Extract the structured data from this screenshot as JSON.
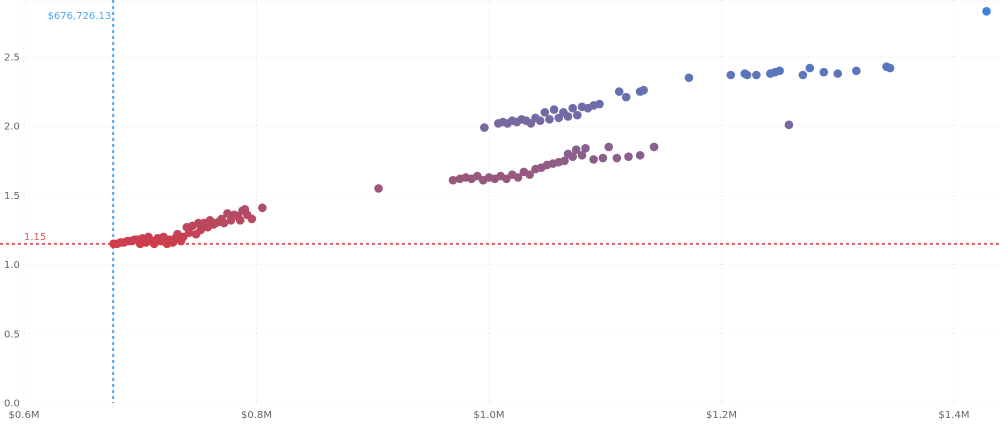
{
  "chart_data": {
    "type": "scatter",
    "title": "",
    "xlabel": "",
    "ylabel": "",
    "xlim": [
      600000,
      1440000
    ],
    "ylim": [
      0,
      2.85
    ],
    "grid": true,
    "x_ticks": [
      {
        "value": 600000,
        "label": "$0.6M"
      },
      {
        "value": 800000,
        "label": "$0.8M"
      },
      {
        "value": 1000000,
        "label": "$1.0M"
      },
      {
        "value": 1200000,
        "label": "$1.2M"
      },
      {
        "value": 1400000,
        "label": "$1.4M"
      }
    ],
    "y_ticks": [
      {
        "value": 0,
        "label": "0.0"
      },
      {
        "value": 0.5,
        "label": "0.5"
      },
      {
        "value": 1.0,
        "label": "1.0"
      },
      {
        "value": 1.5,
        "label": "1.5"
      },
      {
        "value": 2.0,
        "label": "2.0"
      },
      {
        "value": 2.5,
        "label": "2.5"
      }
    ],
    "reference_lines": {
      "x": {
        "value": 676726.13,
        "label": "$676,726.13",
        "color": "#4da6f0"
      },
      "y": {
        "value": 1.15,
        "label": "1.15",
        "color": "#e05c5c"
      }
    },
    "color_scale": {
      "low": "#d13d4a",
      "high": "#3a86d9"
    },
    "points": [
      {
        "x": 677000,
        "y": 1.15
      },
      {
        "x": 680000,
        "y": 1.15
      },
      {
        "x": 683000,
        "y": 1.16
      },
      {
        "x": 686000,
        "y": 1.16
      },
      {
        "x": 689000,
        "y": 1.17
      },
      {
        "x": 692000,
        "y": 1.17
      },
      {
        "x": 695000,
        "y": 1.18
      },
      {
        "x": 698000,
        "y": 1.18
      },
      {
        "x": 700000,
        "y": 1.15
      },
      {
        "x": 702000,
        "y": 1.19
      },
      {
        "x": 705000,
        "y": 1.16
      },
      {
        "x": 707000,
        "y": 1.2
      },
      {
        "x": 710000,
        "y": 1.17
      },
      {
        "x": 712000,
        "y": 1.15
      },
      {
        "x": 715000,
        "y": 1.19
      },
      {
        "x": 718000,
        "y": 1.17
      },
      {
        "x": 720000,
        "y": 1.2
      },
      {
        "x": 723000,
        "y": 1.15
      },
      {
        "x": 725000,
        "y": 1.18
      },
      {
        "x": 728000,
        "y": 1.16
      },
      {
        "x": 730000,
        "y": 1.19
      },
      {
        "x": 732000,
        "y": 1.22
      },
      {
        "x": 735000,
        "y": 1.17
      },
      {
        "x": 737000,
        "y": 1.2
      },
      {
        "x": 740000,
        "y": 1.27
      },
      {
        "x": 742000,
        "y": 1.23
      },
      {
        "x": 745000,
        "y": 1.28
      },
      {
        "x": 748000,
        "y": 1.22
      },
      {
        "x": 750000,
        "y": 1.3
      },
      {
        "x": 752000,
        "y": 1.25
      },
      {
        "x": 755000,
        "y": 1.3
      },
      {
        "x": 758000,
        "y": 1.27
      },
      {
        "x": 760000,
        "y": 1.32
      },
      {
        "x": 763000,
        "y": 1.29
      },
      {
        "x": 765000,
        "y": 1.3
      },
      {
        "x": 768000,
        "y": 1.31
      },
      {
        "x": 770000,
        "y": 1.33
      },
      {
        "x": 772000,
        "y": 1.3
      },
      {
        "x": 775000,
        "y": 1.37
      },
      {
        "x": 778000,
        "y": 1.32
      },
      {
        "x": 781000,
        "y": 1.36
      },
      {
        "x": 784000,
        "y": 1.35
      },
      {
        "x": 786000,
        "y": 1.32
      },
      {
        "x": 788000,
        "y": 1.39
      },
      {
        "x": 790000,
        "y": 1.4
      },
      {
        "x": 792000,
        "y": 1.36
      },
      {
        "x": 796000,
        "y": 1.33
      },
      {
        "x": 805000,
        "y": 1.41
      },
      {
        "x": 905000,
        "y": 1.55
      },
      {
        "x": 969000,
        "y": 1.61
      },
      {
        "x": 975000,
        "y": 1.62
      },
      {
        "x": 980000,
        "y": 1.63
      },
      {
        "x": 985000,
        "y": 1.62
      },
      {
        "x": 990000,
        "y": 1.64
      },
      {
        "x": 995000,
        "y": 1.61
      },
      {
        "x": 1000000,
        "y": 1.63
      },
      {
        "x": 1005000,
        "y": 1.62
      },
      {
        "x": 1010000,
        "y": 1.64
      },
      {
        "x": 1015000,
        "y": 1.62
      },
      {
        "x": 1020000,
        "y": 1.65
      },
      {
        "x": 1025000,
        "y": 1.63
      },
      {
        "x": 1030000,
        "y": 1.67
      },
      {
        "x": 1035000,
        "y": 1.65
      },
      {
        "x": 1040000,
        "y": 1.69
      },
      {
        "x": 1045000,
        "y": 1.7
      },
      {
        "x": 1050000,
        "y": 1.72
      },
      {
        "x": 1055000,
        "y": 1.73
      },
      {
        "x": 1060000,
        "y": 1.74
      },
      {
        "x": 1065000,
        "y": 1.75
      },
      {
        "x": 1068000,
        "y": 1.8
      },
      {
        "x": 1072000,
        "y": 1.78
      },
      {
        "x": 1075000,
        "y": 1.83
      },
      {
        "x": 1080000,
        "y": 1.79
      },
      {
        "x": 1083000,
        "y": 1.84
      },
      {
        "x": 1090000,
        "y": 1.76
      },
      {
        "x": 1098000,
        "y": 1.77
      },
      {
        "x": 1103000,
        "y": 1.85
      },
      {
        "x": 1110000,
        "y": 1.77
      },
      {
        "x": 1120000,
        "y": 1.78
      },
      {
        "x": 1130000,
        "y": 1.79
      },
      {
        "x": 1142000,
        "y": 1.85
      },
      {
        "x": 996000,
        "y": 1.99
      },
      {
        "x": 1008000,
        "y": 2.02
      },
      {
        "x": 1012000,
        "y": 2.03
      },
      {
        "x": 1016000,
        "y": 2.02
      },
      {
        "x": 1020000,
        "y": 2.04
      },
      {
        "x": 1024000,
        "y": 2.03
      },
      {
        "x": 1028000,
        "y": 2.05
      },
      {
        "x": 1032000,
        "y": 2.04
      },
      {
        "x": 1036000,
        "y": 2.02
      },
      {
        "x": 1040000,
        "y": 2.06
      },
      {
        "x": 1044000,
        "y": 2.04
      },
      {
        "x": 1048000,
        "y": 2.1
      },
      {
        "x": 1052000,
        "y": 2.05
      },
      {
        "x": 1056000,
        "y": 2.12
      },
      {
        "x": 1060000,
        "y": 2.06
      },
      {
        "x": 1064000,
        "y": 2.1
      },
      {
        "x": 1068000,
        "y": 2.07
      },
      {
        "x": 1072000,
        "y": 2.13
      },
      {
        "x": 1076000,
        "y": 2.08
      },
      {
        "x": 1080000,
        "y": 2.14
      },
      {
        "x": 1085000,
        "y": 2.13
      },
      {
        "x": 1090000,
        "y": 2.15
      },
      {
        "x": 1095000,
        "y": 2.16
      },
      {
        "x": 1112000,
        "y": 2.25
      },
      {
        "x": 1118000,
        "y": 2.21
      },
      {
        "x": 1130000,
        "y": 2.25
      },
      {
        "x": 1133000,
        "y": 2.26
      },
      {
        "x": 1172000,
        "y": 2.35
      },
      {
        "x": 1208000,
        "y": 2.37
      },
      {
        "x": 1220000,
        "y": 2.38
      },
      {
        "x": 1222000,
        "y": 2.37
      },
      {
        "x": 1230000,
        "y": 2.37
      },
      {
        "x": 1242000,
        "y": 2.38
      },
      {
        "x": 1246000,
        "y": 2.39
      },
      {
        "x": 1250000,
        "y": 2.4
      },
      {
        "x": 1258000,
        "y": 2.01
      },
      {
        "x": 1270000,
        "y": 2.37
      },
      {
        "x": 1276000,
        "y": 2.42
      },
      {
        "x": 1288000,
        "y": 2.39
      },
      {
        "x": 1300000,
        "y": 2.38
      },
      {
        "x": 1316000,
        "y": 2.4
      },
      {
        "x": 1342000,
        "y": 2.43
      },
      {
        "x": 1345000,
        "y": 2.42
      },
      {
        "x": 1428000,
        "y": 2.83
      }
    ]
  }
}
